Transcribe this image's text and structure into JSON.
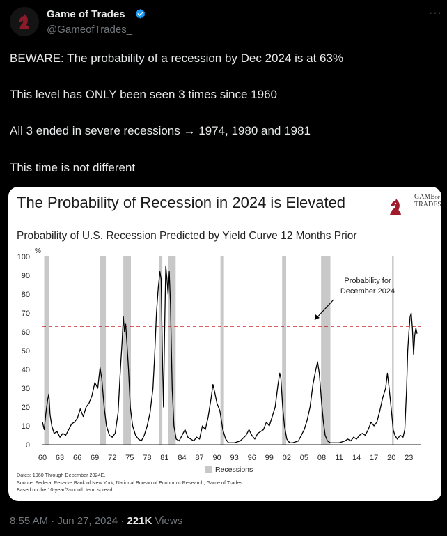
{
  "author": {
    "name": "Game of Trades",
    "handle": "@GameofTrades_",
    "verified_color": "#1d9bf0"
  },
  "tweet": {
    "lines": [
      "BEWARE: The probability of a recession by Dec 2024 is at 63%",
      "This level has ONLY been seen 3 times since 1960",
      "All 3 ended in severe recessions →  1974, 1980 and 1981",
      "This time is not different"
    ]
  },
  "footer": {
    "time": "8:55 AM · Jun 27, 2024 · ",
    "views_count": "221K",
    "views_label": " Views"
  },
  "logo": {
    "line1": "GAME",
    "line2": "OF",
    "line3": "TRADES"
  },
  "chart_data": {
    "type": "line",
    "title": "The Probability of Recession in 2024 is Elevated",
    "subtitle": "Probability of U.S. Recession Predicted by Yield Curve 12 Months Prior",
    "ylabel": "%",
    "ylim": [
      0,
      100
    ],
    "yticks": [
      0,
      10,
      20,
      30,
      40,
      50,
      60,
      70,
      80,
      90,
      100
    ],
    "xlim": [
      1960,
      2025
    ],
    "xticks": [
      "60",
      "63",
      "66",
      "69",
      "72",
      "75",
      "78",
      "81",
      "84",
      "87",
      "90",
      "93",
      "96",
      "99",
      "02",
      "05",
      "08",
      "11",
      "14",
      "17",
      "20",
      "23"
    ],
    "threshold": 63,
    "threshold_color": "#c00000",
    "line_color": "#000000",
    "recession_color": "#c8c8c8",
    "recessions": [
      [
        1960.3,
        1961.1
      ],
      [
        1969.9,
        1970.9
      ],
      [
        1973.9,
        1975.2
      ],
      [
        1980.0,
        1980.6
      ],
      [
        1981.6,
        1982.9
      ],
      [
        1990.6,
        1991.2
      ],
      [
        2001.2,
        2001.9
      ],
      [
        2007.9,
        2009.5
      ],
      [
        2020.1,
        2020.4
      ]
    ],
    "legend": [
      "Recessions"
    ],
    "annotation": {
      "lines": [
        "Probability for",
        "December 2024"
      ]
    },
    "series": [
      {
        "name": "Probability of recession",
        "points": [
          [
            1960.0,
            12
          ],
          [
            1960.3,
            8
          ],
          [
            1960.6,
            17
          ],
          [
            1960.9,
            24
          ],
          [
            1961.1,
            27
          ],
          [
            1961.3,
            16
          ],
          [
            1961.6,
            10
          ],
          [
            1962.0,
            6
          ],
          [
            1962.5,
            7
          ],
          [
            1963.0,
            4
          ],
          [
            1963.5,
            6
          ],
          [
            1964.0,
            5
          ],
          [
            1964.5,
            8
          ],
          [
            1965.0,
            11
          ],
          [
            1965.5,
            12
          ],
          [
            1966.0,
            14
          ],
          [
            1966.5,
            19
          ],
          [
            1967.0,
            15
          ],
          [
            1967.5,
            20
          ],
          [
            1968.0,
            22
          ],
          [
            1968.5,
            26
          ],
          [
            1969.0,
            33
          ],
          [
            1969.5,
            30
          ],
          [
            1969.9,
            41
          ],
          [
            1970.2,
            35
          ],
          [
            1970.6,
            20
          ],
          [
            1971.0,
            10
          ],
          [
            1971.5,
            5
          ],
          [
            1972.0,
            4
          ],
          [
            1972.5,
            6
          ],
          [
            1973.0,
            17
          ],
          [
            1973.4,
            40
          ],
          [
            1973.7,
            55
          ],
          [
            1973.9,
            68
          ],
          [
            1974.1,
            60
          ],
          [
            1974.3,
            64
          ],
          [
            1974.5,
            55
          ],
          [
            1974.8,
            40
          ],
          [
            1975.1,
            20
          ],
          [
            1975.5,
            10
          ],
          [
            1976.0,
            5
          ],
          [
            1976.5,
            3
          ],
          [
            1977.0,
            2
          ],
          [
            1977.5,
            5
          ],
          [
            1978.0,
            10
          ],
          [
            1978.5,
            17
          ],
          [
            1979.0,
            30
          ],
          [
            1979.3,
            48
          ],
          [
            1979.6,
            70
          ],
          [
            1979.9,
            83
          ],
          [
            1980.2,
            92
          ],
          [
            1980.4,
            88
          ],
          [
            1980.6,
            50
          ],
          [
            1980.8,
            20
          ],
          [
            1981.0,
            60
          ],
          [
            1981.2,
            95
          ],
          [
            1981.4,
            88
          ],
          [
            1981.6,
            80
          ],
          [
            1981.8,
            92
          ],
          [
            1982.0,
            75
          ],
          [
            1982.3,
            30
          ],
          [
            1982.6,
            10
          ],
          [
            1983.0,
            3
          ],
          [
            1983.5,
            2
          ],
          [
            1984.0,
            5
          ],
          [
            1984.5,
            8
          ],
          [
            1985.0,
            4
          ],
          [
            1985.5,
            3
          ],
          [
            1986.0,
            2
          ],
          [
            1986.5,
            4
          ],
          [
            1987.0,
            3
          ],
          [
            1987.5,
            10
          ],
          [
            1988.0,
            8
          ],
          [
            1988.5,
            15
          ],
          [
            1989.0,
            25
          ],
          [
            1989.3,
            32
          ],
          [
            1989.6,
            28
          ],
          [
            1990.0,
            22
          ],
          [
            1990.5,
            18
          ],
          [
            1991.0,
            8
          ],
          [
            1991.5,
            3
          ],
          [
            1992.0,
            1
          ],
          [
            1993.0,
            1
          ],
          [
            1994.0,
            2
          ],
          [
            1995.0,
            5
          ],
          [
            1995.5,
            8
          ],
          [
            1996.0,
            5
          ],
          [
            1996.5,
            3
          ],
          [
            1997.0,
            6
          ],
          [
            1997.5,
            7
          ],
          [
            1998.0,
            8
          ],
          [
            1998.5,
            12
          ],
          [
            1999.0,
            10
          ],
          [
            1999.5,
            15
          ],
          [
            2000.0,
            20
          ],
          [
            2000.5,
            32
          ],
          [
            2000.8,
            38
          ],
          [
            2001.0,
            35
          ],
          [
            2001.3,
            20
          ],
          [
            2001.6,
            10
          ],
          [
            2002.0,
            3
          ],
          [
            2002.5,
            1
          ],
          [
            2003.0,
            1
          ],
          [
            2004.0,
            2
          ],
          [
            2005.0,
            8
          ],
          [
            2005.5,
            13
          ],
          [
            2006.0,
            20
          ],
          [
            2006.5,
            32
          ],
          [
            2007.0,
            40
          ],
          [
            2007.3,
            44
          ],
          [
            2007.6,
            38
          ],
          [
            2008.0,
            22
          ],
          [
            2008.3,
            12
          ],
          [
            2008.6,
            5
          ],
          [
            2009.0,
            2
          ],
          [
            2009.5,
            1
          ],
          [
            2010.0,
            1
          ],
          [
            2011.0,
            1
          ],
          [
            2012.0,
            2
          ],
          [
            2012.5,
            3
          ],
          [
            2013.0,
            2
          ],
          [
            2013.5,
            4
          ],
          [
            2014.0,
            3
          ],
          [
            2014.5,
            5
          ],
          [
            2015.0,
            6
          ],
          [
            2015.5,
            5
          ],
          [
            2016.0,
            8
          ],
          [
            2016.5,
            12
          ],
          [
            2017.0,
            10
          ],
          [
            2017.5,
            12
          ],
          [
            2018.0,
            18
          ],
          [
            2018.5,
            25
          ],
          [
            2019.0,
            30
          ],
          [
            2019.3,
            38
          ],
          [
            2019.6,
            30
          ],
          [
            2020.0,
            18
          ],
          [
            2020.3,
            8
          ],
          [
            2020.6,
            5
          ],
          [
            2021.0,
            3
          ],
          [
            2021.5,
            5
          ],
          [
            2022.0,
            4
          ],
          [
            2022.3,
            8
          ],
          [
            2022.6,
            30
          ],
          [
            2022.8,
            50
          ],
          [
            2023.0,
            60
          ],
          [
            2023.2,
            68
          ],
          [
            2023.4,
            70
          ],
          [
            2023.6,
            62
          ],
          [
            2023.8,
            48
          ],
          [
            2024.0,
            58
          ],
          [
            2024.2,
            62
          ],
          [
            2024.4,
            59
          ]
        ]
      }
    ]
  }
}
